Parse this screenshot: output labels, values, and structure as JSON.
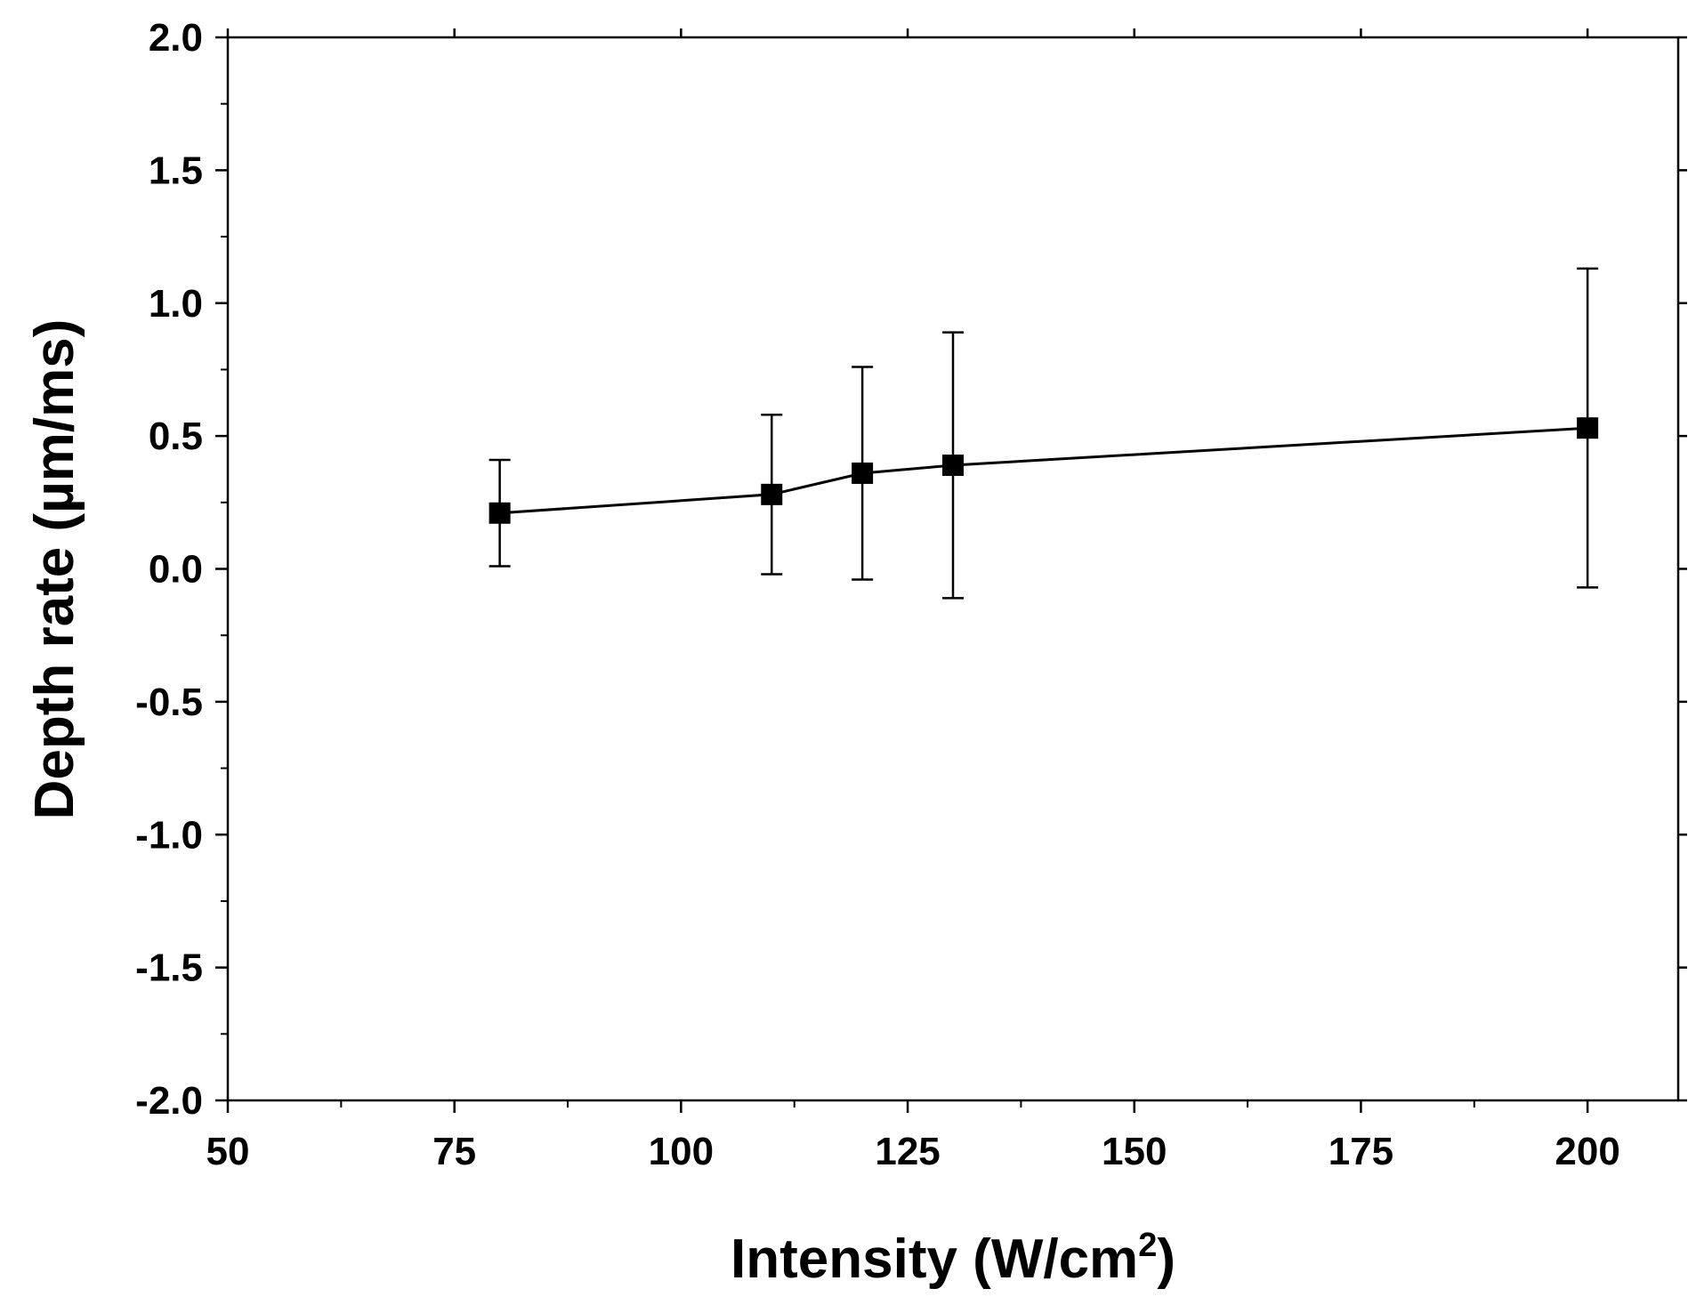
{
  "chart_data": {
    "type": "line",
    "title": "",
    "xlabel": {
      "prefix": "Intensity (W/cm",
      "superscript": "2",
      "suffix": ")"
    },
    "ylabel": "Depth rate (µm/ms)",
    "xlim": [
      50,
      210
    ],
    "ylim": [
      -2.0,
      2.0
    ],
    "x_ticks": [
      {
        "value": 50,
        "label": "50"
      },
      {
        "value": 75,
        "label": "75"
      },
      {
        "value": 100,
        "label": "100"
      },
      {
        "value": 125,
        "label": "125"
      },
      {
        "value": 150,
        "label": "150"
      },
      {
        "value": 175,
        "label": "175"
      },
      {
        "value": 200,
        "label": "200"
      }
    ],
    "x_minor_ticks": [
      62.5,
      87.5,
      112.5,
      137.5,
      162.5,
      187.5
    ],
    "y_ticks": [
      {
        "value": -2.0,
        "label": "-2.0"
      },
      {
        "value": -1.5,
        "label": "-1.5"
      },
      {
        "value": -1.0,
        "label": "-1.0"
      },
      {
        "value": -0.5,
        "label": "-0.5"
      },
      {
        "value": 0.0,
        "label": "0.0"
      },
      {
        "value": 0.5,
        "label": "0.5"
      },
      {
        "value": 1.0,
        "label": "1.0"
      },
      {
        "value": 1.5,
        "label": "1.5"
      },
      {
        "value": 2.0,
        "label": "2.0"
      }
    ],
    "y_minor_ticks": [
      -1.75,
      -1.25,
      -0.75,
      -0.25,
      0.25,
      0.75,
      1.25,
      1.75
    ],
    "grid": false,
    "legend": "none",
    "series": [
      {
        "name": "Depth rate",
        "marker": "square",
        "color": "#000000",
        "points": [
          {
            "x": 80,
            "y": 0.21,
            "yerr": 0.2
          },
          {
            "x": 110,
            "y": 0.28,
            "yerr": 0.3
          },
          {
            "x": 120,
            "y": 0.36,
            "yerr": 0.4
          },
          {
            "x": 130,
            "y": 0.39,
            "yerr": 0.5
          },
          {
            "x": 200,
            "y": 0.53,
            "yerr": 0.6
          }
        ]
      }
    ]
  }
}
